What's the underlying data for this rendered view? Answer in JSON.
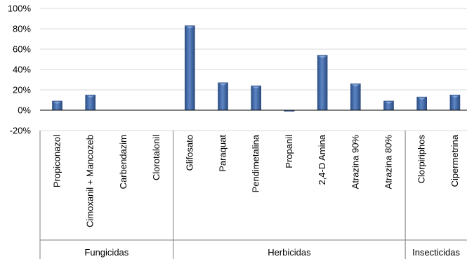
{
  "chart_data": {
    "type": "bar",
    "title": "",
    "xlabel": "",
    "ylabel": "",
    "ylim": [
      -20,
      100
    ],
    "y_ticks": [
      "100%",
      "80%",
      "60%",
      "40%",
      "20%",
      "0%",
      "-20%"
    ],
    "y_tick_values": [
      100,
      80,
      60,
      40,
      20,
      0,
      -20
    ],
    "grid": true,
    "legend": "none",
    "bar_color": "#4a72b0",
    "categories": [
      "Propiconazol",
      "Cimoxanil + Mancozeb",
      "Carbendazim",
      "Clorotalonil",
      "Glifosato",
      "Paraquat",
      "Pendimetalina",
      "Propanil",
      "2,4-D Amina",
      "Atrazina 90%",
      "Atrazina 80%",
      "Clorpiriphos",
      "Cipermetrina"
    ],
    "values": [
      9,
      15,
      0,
      0,
      83,
      27,
      24,
      -1,
      54,
      26,
      9,
      13,
      15
    ],
    "groups": [
      {
        "label": "Fungicidas",
        "count": 4
      },
      {
        "label": "Herbicidas",
        "count": 7
      },
      {
        "label": "Insecticidas",
        "count": 2
      }
    ]
  }
}
